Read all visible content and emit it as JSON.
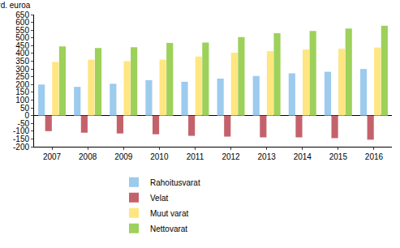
{
  "chart_data": {
    "type": "bar",
    "ylabel": "mrd. euroa",
    "categories": [
      "2007",
      "2008",
      "2009",
      "2010",
      "2011",
      "2012",
      "2013",
      "2014",
      "2015",
      "2016"
    ],
    "series": [
      {
        "name": "Rahoitusvarat",
        "color": "#9ccbee",
        "values": [
          200,
          185,
          205,
          228,
          218,
          238,
          255,
          272,
          282,
          300
        ]
      },
      {
        "name": "Velat",
        "color": "#c4626c",
        "values": [
          -100,
          -110,
          -115,
          -120,
          -130,
          -135,
          -140,
          -140,
          -145,
          -155
        ]
      },
      {
        "name": "Muut varat",
        "color": "#ffe680",
        "values": [
          345,
          360,
          350,
          360,
          380,
          405,
          415,
          425,
          430,
          438
        ]
      },
      {
        "name": "Nettovarat",
        "color": "#9dd15a",
        "values": [
          445,
          435,
          440,
          468,
          470,
          505,
          530,
          545,
          560,
          578
        ]
      }
    ],
    "ylim": [
      -200,
      650
    ],
    "yticks": [
      -200,
      -150,
      -100,
      -50,
      0,
      50,
      100,
      150,
      200,
      250,
      300,
      350,
      400,
      450,
      500,
      550,
      600,
      650
    ],
    "grid": false,
    "legend": "bottom"
  }
}
